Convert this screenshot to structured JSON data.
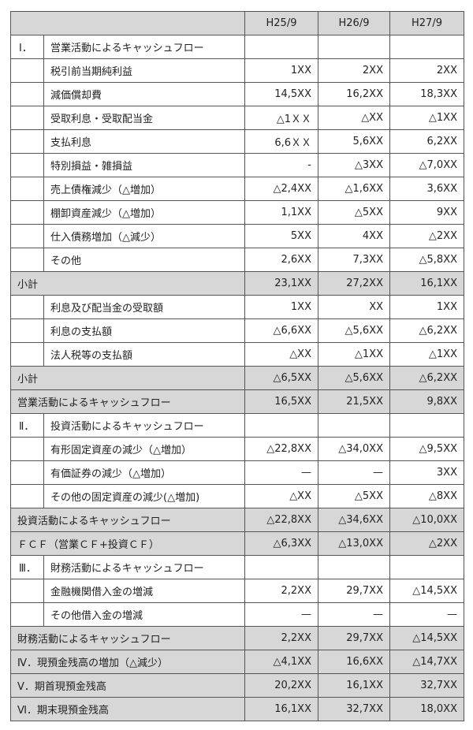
{
  "table": {
    "header": [
      "H25/9",
      "H26/9",
      "H27/9"
    ],
    "rows": [
      {
        "number": "Ⅰ．",
        "label": "営業活動によるキャッシュフロー"
      },
      {
        "label": "税引前当期純利益",
        "values": [
          "1XX",
          "2XX",
          "2XX"
        ]
      },
      {
        "label": "減価償却費",
        "values": [
          "14,5XX",
          "16,2XX",
          "18,3XX"
        ]
      },
      {
        "label": "受取利息・受取配当金",
        "values": [
          "△1ＸＸ",
          "△XX",
          "△1XX"
        ]
      },
      {
        "label": "支払利息",
        "values": [
          "6,6ＸＸ",
          "5,6XX",
          "6,2XX"
        ]
      },
      {
        "label": "特別損益・雑損益",
        "values": [
          "-",
          "△3XX",
          "△7,0XX"
        ]
      },
      {
        "label": "売上債権減少（△増加）",
        "values": [
          "△2,4XX",
          "△1,6XX",
          "3,6XX"
        ]
      },
      {
        "label": "棚卸資産減少（△増加）",
        "values": [
          "1,1XX",
          "△5XX",
          "9XX"
        ]
      },
      {
        "label": "仕入債務増加（△減少）",
        "values": [
          "5XX",
          "4XX",
          "△2XX"
        ]
      },
      {
        "label": "その他",
        "values": [
          "2,6XX",
          "7,3XX",
          "△5,8XX"
        ]
      },
      {
        "label": "小計",
        "values": [
          "23,1XX",
          "27,2XX",
          "16,1XX"
        ],
        "shaded": true
      },
      {
        "label": "利息及び配当金の受取額",
        "values": [
          "1XX",
          "XX",
          "1XX"
        ]
      },
      {
        "label": "利息の支払額",
        "values": [
          "△6,6XX",
          "△5,6XX",
          "△6,2XX"
        ]
      },
      {
        "label": "法人税等の支払額",
        "values": [
          "△XX",
          "△1XX",
          "△1XX"
        ]
      },
      {
        "label": "小計",
        "values": [
          "△6,5XX",
          "△5,6XX",
          "△6,2XX"
        ],
        "shaded": true
      },
      {
        "label": "営業活動によるキャッシュフロー",
        "values": [
          "16,5XX",
          "21,5XX",
          "9,8XX"
        ],
        "shaded": true
      },
      {
        "number": "Ⅱ．",
        "label": "投資活動によるキャッシュフロー"
      },
      {
        "label": "有形固定資産の減少（△増加）",
        "values": [
          "△22,8XX",
          "△34,0XX",
          "△9,5XX"
        ]
      },
      {
        "label": "有価証券の減少（△増加）",
        "values": [
          "—",
          "—",
          "3XX"
        ]
      },
      {
        "label": "その他の固定資産の減少(△増加)",
        "values": [
          "△XX",
          "△5XX",
          "△8XX"
        ]
      },
      {
        "label": "投資活動によるキャッシュフロー",
        "values": [
          "△22,8XX",
          "△34,6XX",
          "△10,0XX"
        ],
        "shaded": true
      },
      {
        "label": "ＦＣＦ（営業ＣＦ+投資ＣＦ）",
        "values": [
          "△6,3XX",
          "△13,0XX",
          "△2XX"
        ],
        "shaded": true
      },
      {
        "number": "Ⅲ．",
        "label": "財務活動によるキャッシュフロー"
      },
      {
        "label": "金融機関借入金の増減",
        "values": [
          "2,2XX",
          "29,7XX",
          "△14,5XX"
        ]
      },
      {
        "label": "その他借入金の増減",
        "values": [
          "—",
          "—",
          "—"
        ]
      },
      {
        "label": "財務活動によるキャッシュフロー",
        "values": [
          "2,2XX",
          "29,7XX",
          "△14,5XX"
        ],
        "shaded": true
      },
      {
        "label": "Ⅳ．現預金残高の増加（△減少）",
        "values": [
          "△4,1XX",
          "16,6XX",
          "△14,7XX"
        ],
        "shaded": true
      },
      {
        "label": "Ⅴ．期首現預金残高",
        "values": [
          "20,2XX",
          "16,1XX",
          "32,7XX"
        ],
        "shaded": true
      },
      {
        "label": "Ⅵ．期末現預金残高",
        "values": [
          "16,1XX",
          "32,7XX",
          "18,0XX"
        ],
        "shaded": true
      }
    ]
  }
}
